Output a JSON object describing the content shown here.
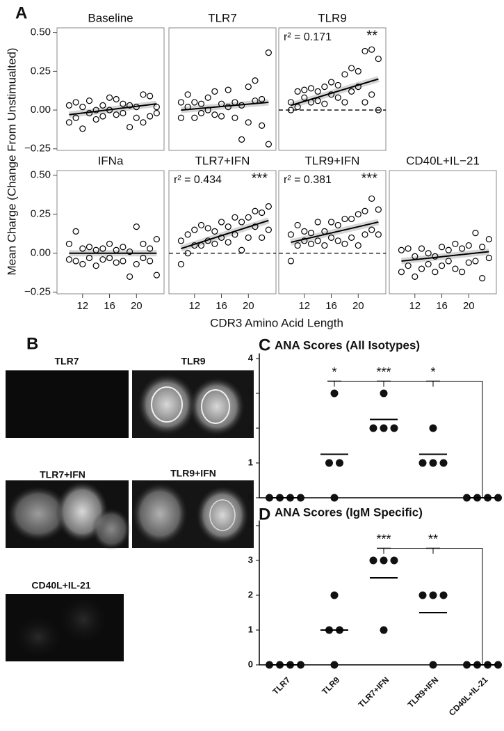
{
  "panel_labels": [
    "A",
    "B",
    "C",
    "D"
  ],
  "panel_a": {
    "ylabel": "Mean Charge (Change From Unstimualted)",
    "xlabel": "CDR3 Amino Acid Length"
  },
  "panel_b": {
    "images": [
      "TLR7",
      "TLR9",
      "TLR7+IFN",
      "TLR9+IFN",
      "CD40L+IL-21"
    ]
  },
  "chart_data": [
    {
      "type": "scatter",
      "title": "Baseline",
      "xlim": [
        8.2,
        24.1
      ],
      "ylim": [
        -0.26,
        0.53
      ],
      "yticks": [
        {
          "value": 0.5,
          "label": "0.50"
        },
        {
          "value": 0.25,
          "label": "0.25"
        },
        {
          "value": 0,
          "label": "0.00"
        },
        {
          "value": -0.25,
          "label": "−0.25"
        }
      ],
      "x": [
        10,
        10,
        11,
        11,
        12,
        12,
        13,
        13,
        14,
        14,
        15,
        15,
        16,
        16,
        17,
        17,
        18,
        18,
        19,
        19,
        20,
        20,
        21,
        21,
        22,
        22,
        23,
        23
      ],
      "y": [
        -0.08,
        0.03,
        -0.05,
        0.05,
        -0.12,
        0.02,
        -0.02,
        0.06,
        -0.06,
        0.0,
        -0.04,
        0.03,
        0.0,
        0.08,
        -0.03,
        0.07,
        -0.02,
        0.04,
        -0.11,
        0.03,
        -0.05,
        0.02,
        -0.08,
        0.1,
        -0.04,
        0.09,
        -0.02,
        0.02
      ],
      "fit": {
        "x": [
          10,
          23
        ],
        "y": [
          -0.03,
          0.04
        ]
      },
      "zero_line": false
    },
    {
      "type": "scatter",
      "title": "TLR7",
      "xlim": [
        8.2,
        24.1
      ],
      "ylim": [
        -0.26,
        0.53
      ],
      "x": [
        10,
        10,
        11,
        11,
        12,
        12,
        13,
        13,
        14,
        14,
        15,
        15,
        16,
        16,
        17,
        17,
        18,
        18,
        19,
        19,
        20,
        20,
        21,
        21,
        22,
        22,
        23,
        23
      ],
      "y": [
        -0.05,
        0.05,
        0.02,
        0.1,
        -0.05,
        0.05,
        -0.02,
        0.04,
        0.0,
        0.08,
        -0.03,
        0.12,
        -0.04,
        0.04,
        0.02,
        0.13,
        -0.05,
        0.05,
        -0.19,
        0.03,
        -0.08,
        0.15,
        0.06,
        0.19,
        -0.1,
        0.07,
        -0.22,
        0.37
      ],
      "fit": {
        "x": [
          10,
          23
        ],
        "y": [
          0.0,
          0.05
        ]
      },
      "zero_line": false
    },
    {
      "type": "scatter",
      "title": "TLR9",
      "annotation": "r² = 0.171",
      "significance": "**",
      "xlim": [
        8.2,
        24.1
      ],
      "ylim": [
        -0.26,
        0.53
      ],
      "x": [
        10,
        10,
        11,
        11,
        12,
        12,
        13,
        13,
        14,
        14,
        15,
        15,
        16,
        16,
        17,
        17,
        18,
        18,
        19,
        19,
        20,
        20,
        21,
        21,
        22,
        22,
        23,
        23
      ],
      "y": [
        0.0,
        0.05,
        0.02,
        0.12,
        0.08,
        0.13,
        0.05,
        0.14,
        0.06,
        0.12,
        0.04,
        0.15,
        0.1,
        0.18,
        0.08,
        0.16,
        0.05,
        0.23,
        0.12,
        0.27,
        0.15,
        0.25,
        0.05,
        0.38,
        0.1,
        0.39,
        0.0,
        0.33
      ],
      "fit": {
        "x": [
          10,
          23
        ],
        "y": [
          0.03,
          0.2
        ]
      },
      "zero_line": true
    },
    {
      "type": "scatter",
      "title": "IFNa",
      "xlim": [
        8.2,
        24.1
      ],
      "ylim": [
        -0.26,
        0.53
      ],
      "yticks": [
        {
          "value": 0.5,
          "label": "0.50"
        },
        {
          "value": 0.25,
          "label": "0.25"
        },
        {
          "value": 0,
          "label": "0.00"
        },
        {
          "value": -0.25,
          "label": "−0.25"
        }
      ],
      "xticks": [
        12,
        16,
        20
      ],
      "x": [
        10,
        10,
        11,
        11,
        12,
        12,
        13,
        13,
        14,
        14,
        15,
        15,
        16,
        16,
        17,
        17,
        18,
        18,
        19,
        19,
        20,
        20,
        21,
        21,
        22,
        22,
        23,
        23
      ],
      "y": [
        -0.04,
        0.06,
        -0.05,
        0.14,
        -0.07,
        0.03,
        -0.03,
        0.04,
        -0.08,
        0.02,
        -0.04,
        0.03,
        -0.03,
        0.06,
        -0.06,
        0.02,
        -0.05,
        0.04,
        -0.15,
        0.01,
        -0.07,
        0.17,
        -0.03,
        0.06,
        -0.05,
        0.03,
        -0.14,
        0.09
      ],
      "fit": {
        "x": [
          10,
          23
        ],
        "y": [
          0.0,
          0.0
        ]
      },
      "zero_line": false
    },
    {
      "type": "scatter",
      "title": "TLR7+IFN",
      "annotation": "r² = 0.434",
      "significance": "***",
      "xlim": [
        8.2,
        24.1
      ],
      "ylim": [
        -0.26,
        0.53
      ],
      "xticks": [
        12,
        16,
        20
      ],
      "x": [
        10,
        10,
        11,
        11,
        12,
        12,
        13,
        13,
        14,
        14,
        15,
        15,
        16,
        16,
        17,
        17,
        18,
        18,
        19,
        19,
        20,
        20,
        21,
        21,
        22,
        22,
        23,
        23
      ],
      "y": [
        -0.07,
        0.08,
        0.0,
        0.12,
        0.05,
        0.15,
        0.05,
        0.18,
        0.08,
        0.16,
        0.06,
        0.14,
        0.1,
        0.2,
        0.07,
        0.17,
        0.12,
        0.23,
        0.02,
        0.2,
        0.1,
        0.23,
        0.17,
        0.27,
        0.1,
        0.26,
        0.15,
        0.3
      ],
      "fit": {
        "x": [
          10,
          23
        ],
        "y": [
          0.03,
          0.21
        ]
      },
      "zero_line": true
    },
    {
      "type": "scatter",
      "title": "TLR9+IFN",
      "annotation": "r² = 0.381",
      "significance": "***",
      "xlim": [
        8.2,
        24.1
      ],
      "ylim": [
        -0.26,
        0.53
      ],
      "xticks": [
        12,
        16,
        20
      ],
      "x": [
        10,
        10,
        11,
        11,
        12,
        12,
        13,
        13,
        14,
        14,
        15,
        15,
        16,
        16,
        17,
        17,
        18,
        18,
        19,
        19,
        20,
        20,
        21,
        21,
        22,
        22,
        23,
        23
      ],
      "y": [
        -0.05,
        0.12,
        0.05,
        0.18,
        0.08,
        0.14,
        0.06,
        0.13,
        0.08,
        0.2,
        0.05,
        0.14,
        0.1,
        0.2,
        0.08,
        0.18,
        0.06,
        0.22,
        0.1,
        0.22,
        0.05,
        0.25,
        0.12,
        0.27,
        0.15,
        0.35,
        0.12,
        0.28
      ],
      "fit": {
        "x": [
          10,
          23
        ],
        "y": [
          0.07,
          0.2
        ]
      },
      "zero_line": true
    },
    {
      "type": "scatter",
      "title": "CD40L+IL−21",
      "xlim": [
        8.2,
        24.1
      ],
      "ylim": [
        -0.26,
        0.53
      ],
      "xticks": [
        12,
        16,
        20
      ],
      "x": [
        10,
        10,
        11,
        11,
        12,
        12,
        13,
        13,
        14,
        14,
        15,
        15,
        16,
        16,
        17,
        17,
        18,
        18,
        19,
        19,
        20,
        20,
        21,
        21,
        22,
        22,
        23,
        23
      ],
      "y": [
        -0.12,
        0.02,
        -0.08,
        0.03,
        -0.15,
        -0.02,
        -0.1,
        0.03,
        -0.07,
        0.0,
        -0.12,
        -0.02,
        -0.08,
        0.04,
        -0.05,
        0.02,
        -0.1,
        0.06,
        -0.12,
        0.03,
        -0.06,
        0.05,
        -0.05,
        0.13,
        -0.16,
        0.04,
        -0.03,
        0.09
      ],
      "fit": {
        "x": [
          10,
          23
        ],
        "y": [
          -0.05,
          0.01
        ]
      },
      "zero_line": false
    },
    {
      "type": "dot",
      "title": "ANA Scores (All Isotypes)",
      "ylim": [
        0,
        4.15
      ],
      "yticks": [
        0,
        1,
        2,
        3,
        4
      ],
      "series": [
        [
          0,
          0,
          0,
          0
        ],
        [
          3,
          1,
          1,
          0
        ],
        [
          3,
          2,
          2,
          2
        ],
        [
          2,
          1,
          1,
          1
        ],
        [
          0,
          0,
          0,
          0
        ]
      ],
      "means": [
        0,
        1.25,
        2.25,
        1.25,
        0
      ],
      "bracket_level": 3.35,
      "comparisons": [
        {
          "from": 1,
          "to": 4,
          "label": "*"
        },
        {
          "from": 2,
          "to": 4,
          "label": "***"
        },
        {
          "from": 3,
          "to": 4,
          "label": "*"
        }
      ]
    },
    {
      "type": "dot",
      "title": "ANA Scores (IgM Specific)",
      "ylim": [
        0,
        4.15
      ],
      "yticks": [
        0,
        1,
        2,
        3,
        4
      ],
      "categories": [
        "TLR7",
        "TLR9",
        "TLR7+IFN",
        "TLR9+IFN",
        "CD40L+IL-21"
      ],
      "series": [
        [
          0,
          0,
          0,
          0
        ],
        [
          2,
          1,
          1,
          0
        ],
        [
          3,
          3,
          3,
          1
        ],
        [
          2,
          2,
          2,
          0
        ],
        [
          0,
          0,
          0,
          0
        ]
      ],
      "means": [
        0,
        1,
        2.5,
        1.5,
        0
      ],
      "bracket_level": 3.35,
      "comparisons": [
        {
          "from": 2,
          "to": 4,
          "label": "***"
        },
        {
          "from": 3,
          "to": 4,
          "label": "**"
        }
      ]
    }
  ]
}
